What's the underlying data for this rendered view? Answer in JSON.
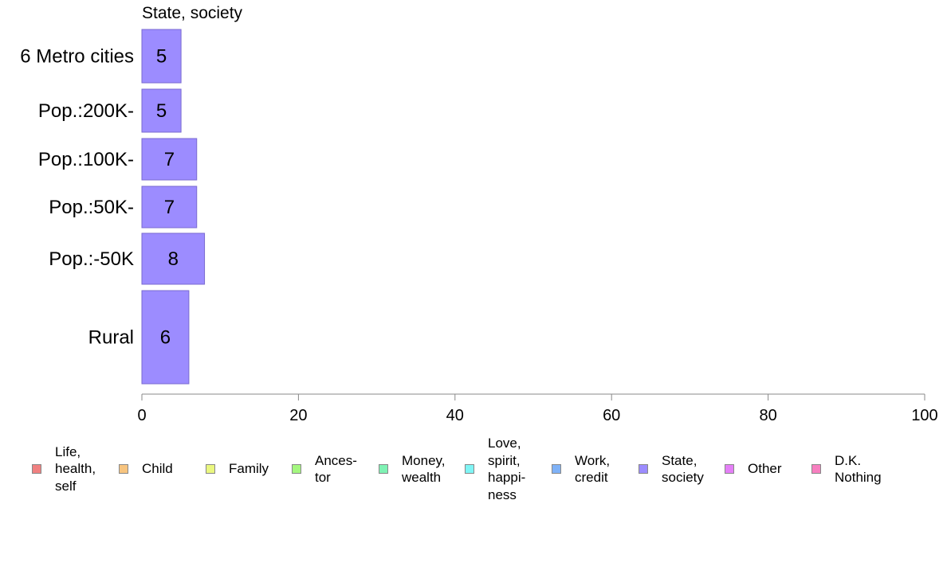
{
  "chart_data": {
    "type": "bar",
    "orientation": "horizontal",
    "title": "State, society",
    "categories": [
      "6 Metro cities",
      "Pop.:200K-",
      "Pop.:100K-",
      "Pop.:50K-",
      "Pop.:-50K",
      "Rural"
    ],
    "values": [
      5,
      5,
      7,
      7,
      8,
      6
    ],
    "data_labels": [
      "5",
      "5",
      "7",
      "7",
      "8",
      "6"
    ],
    "bar_color": "#9c8cff",
    "xlim": [
      0,
      100
    ],
    "x_ticks": [
      "0",
      "20",
      "40",
      "60",
      "80",
      "100"
    ],
    "legend": [
      {
        "label": "Life,\nhealth,\nself",
        "color": "#f08080"
      },
      {
        "label": "Child",
        "color": "#f7c47f"
      },
      {
        "label": "Family",
        "color": "#eaf77f"
      },
      {
        "label": "Ances-\ntor",
        "color": "#a4f77f"
      },
      {
        "label": "Money,\nwealth",
        "color": "#7ff2b4"
      },
      {
        "label": "Love,\nspirit,\nhappi-\nness",
        "color": "#7ff5f5"
      },
      {
        "label": "Work,\ncredit",
        "color": "#7fb2f7"
      },
      {
        "label": "State,\nsociety",
        "color": "#9c8cff"
      },
      {
        "label": "Other",
        "color": "#e47ff7"
      },
      {
        "label": "D.K.\nNothing",
        "color": "#f77fc0"
      }
    ]
  }
}
